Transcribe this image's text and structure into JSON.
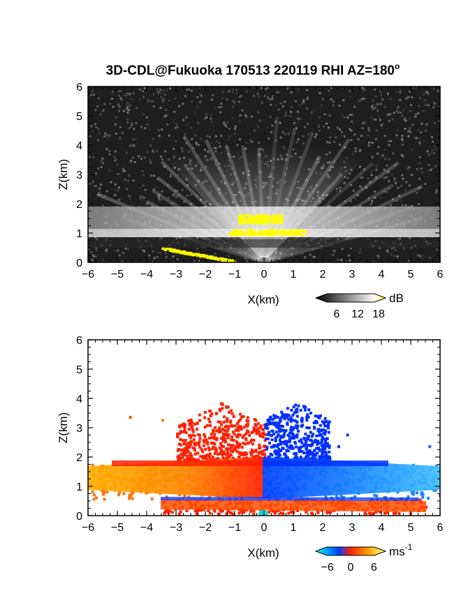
{
  "title": "3D-CDL@Fukuoka 170513 220119 RHI AZ=180",
  "title_degree": "o",
  "chart_data": [
    {
      "type": "heatmap",
      "quantity": "reflectivity",
      "xlabel": "X(km)",
      "ylabel": "Z(km)",
      "xlim": [
        -6,
        6
      ],
      "ylim": [
        0,
        6
      ],
      "xticks": [
        -6,
        -5,
        -4,
        -3,
        -2,
        -1,
        0,
        1,
        2,
        3,
        4,
        5,
        6
      ],
      "yticks": [
        0,
        1,
        2,
        3,
        4,
        5,
        6
      ],
      "colorbar": {
        "unit": "dB",
        "ticks": [
          6,
          12,
          18
        ],
        "range": [
          0,
          20
        ],
        "colors": [
          "#000000",
          "#ffffff",
          "#ffff00"
        ]
      },
      "features": [
        {
          "x": [
            -6,
            6
          ],
          "z": [
            1.0,
            1.9
          ],
          "level": "bright",
          "note_value_db": 14
        },
        {
          "x": [
            -0.9,
            0.6
          ],
          "z": [
            1.35,
            1.65
          ],
          "level": "saturated",
          "value_db": 20
        },
        {
          "x": [
            -1.2,
            1.4
          ],
          "z": [
            0.95,
            1.15
          ],
          "level": "saturated",
          "value_db": 20
        },
        {
          "x": [
            -3.5,
            -1.0
          ],
          "z": [
            0.0,
            0.5
          ],
          "level": "saturated",
          "value_db": 20
        }
      ]
    },
    {
      "type": "heatmap",
      "quantity": "doppler_velocity",
      "xlabel": "X(km)",
      "ylabel": "Z(km)",
      "xlim": [
        -6,
        6
      ],
      "ylim": [
        0,
        6
      ],
      "xticks": [
        -6,
        -5,
        -4,
        -3,
        -2,
        -1,
        0,
        1,
        2,
        3,
        4,
        5,
        6
      ],
      "yticks": [
        0,
        1,
        2,
        3,
        4,
        5,
        6
      ],
      "colorbar": {
        "unit": "ms",
        "unit_exp": "-1",
        "ticks": [
          -6,
          0,
          6
        ],
        "range": [
          -9,
          9
        ],
        "colors": [
          "#00ffff",
          "#0040ff",
          "#ff2000",
          "#ffa000",
          "#ffff80"
        ]
      },
      "features": [
        {
          "x": [
            -6,
            0
          ],
          "z": [
            0.6,
            1.8
          ],
          "velocity": 4
        },
        {
          "x": [
            0,
            6
          ],
          "z": [
            0.6,
            1.8
          ],
          "velocity": -4
        },
        {
          "x": [
            -3,
            0
          ],
          "z": [
            1.8,
            3.9
          ],
          "velocity": 2
        },
        {
          "x": [
            0,
            2.2
          ],
          "z": [
            1.8,
            3.9
          ],
          "velocity": -3
        },
        {
          "x": [
            -3.5,
            5.5
          ],
          "z": [
            0.1,
            0.6
          ],
          "velocity": 3
        }
      ]
    }
  ]
}
